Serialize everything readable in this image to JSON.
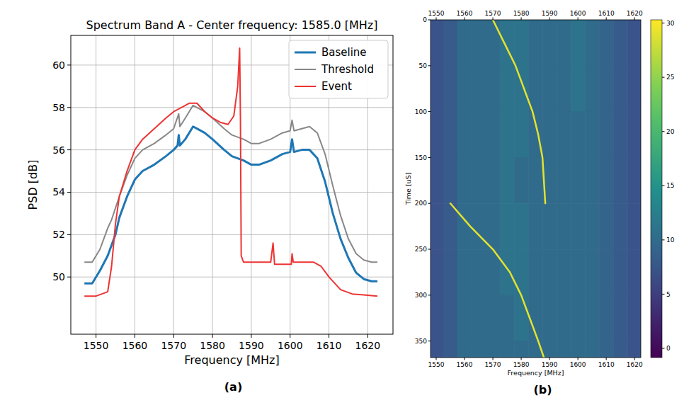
{
  "chart_data": [
    {
      "type": "line",
      "title": "Spectrum Band A - Center frequency: 1585.0 [MHz]",
      "x_label": "Frequency [MHz]",
      "y_label": "PSD [dB]",
      "panel_label": "(a)",
      "xlim": [
        1543.5,
        1626.5
      ],
      "xticks": [
        1550,
        1560,
        1570,
        1580,
        1590,
        1600,
        1610,
        1620
      ],
      "ylim": [
        47.3,
        61.4
      ],
      "yticks": [
        50,
        52,
        54,
        56,
        58,
        60
      ],
      "grid": true,
      "legend": "upper right",
      "series": [
        {
          "name": "Baseline",
          "color": "#1f77b4",
          "x": [
            1547,
            1549,
            1551,
            1553,
            1554,
            1555,
            1556,
            1558,
            1560,
            1562,
            1565,
            1568,
            1570,
            1571,
            1571.3,
            1571.6,
            1573,
            1575,
            1576,
            1578,
            1580,
            1583,
            1585,
            1588,
            1590,
            1592,
            1595,
            1598,
            1600,
            1600.5,
            1601,
            1603,
            1605,
            1607,
            1609,
            1611,
            1613,
            1615,
            1617,
            1619,
            1621,
            1622.5
          ],
          "values": [
            49.7,
            49.7,
            50.3,
            51.0,
            51.5,
            52.0,
            52.8,
            53.8,
            54.6,
            55.0,
            55.3,
            55.7,
            56.0,
            56.2,
            56.7,
            56.2,
            56.5,
            57.1,
            57.0,
            56.8,
            56.5,
            56.0,
            55.7,
            55.5,
            55.3,
            55.3,
            55.5,
            55.8,
            55.9,
            56.5,
            55.9,
            56.0,
            56.0,
            55.6,
            54.5,
            53.0,
            51.8,
            50.9,
            50.2,
            49.9,
            49.8,
            49.8
          ]
        },
        {
          "name": "Threshold",
          "color": "#888888",
          "x": [
            1547,
            1549,
            1551,
            1553,
            1554,
            1556,
            1558,
            1560,
            1562,
            1565,
            1568,
            1570,
            1571.3,
            1571.6,
            1573,
            1575,
            1576,
            1578,
            1580,
            1583,
            1585,
            1588,
            1590,
            1592,
            1595,
            1598,
            1600,
            1600.5,
            1601,
            1603,
            1605,
            1607,
            1609,
            1611,
            1613,
            1615,
            1617,
            1619,
            1621,
            1622.5
          ],
          "values": [
            50.7,
            50.7,
            51.3,
            52.3,
            52.7,
            53.8,
            54.8,
            55.6,
            56.0,
            56.3,
            56.7,
            57.0,
            57.7,
            57.1,
            57.5,
            58.1,
            58.0,
            57.8,
            57.5,
            57.0,
            56.7,
            56.5,
            56.3,
            56.3,
            56.5,
            56.8,
            56.9,
            57.4,
            56.9,
            57.0,
            57.1,
            56.8,
            55.8,
            54.3,
            52.9,
            51.8,
            51.1,
            50.8,
            50.7,
            50.7
          ]
        },
        {
          "name": "Event",
          "color": "#ee3333",
          "x": [
            1547,
            1550,
            1553,
            1554,
            1555,
            1556,
            1558,
            1560,
            1562,
            1565,
            1568,
            1570,
            1572,
            1574,
            1576,
            1578,
            1580,
            1582,
            1584,
            1585.5,
            1586.5,
            1587,
            1587.2,
            1587.4,
            1588,
            1590,
            1595,
            1595.6,
            1596,
            1598,
            1600.3,
            1600.5,
            1600.8,
            1603,
            1606,
            1608,
            1610,
            1613,
            1616,
            1622.5
          ],
          "values": [
            49.1,
            49.1,
            49.3,
            50.5,
            52.5,
            53.8,
            55.0,
            56.0,
            56.5,
            57.0,
            57.5,
            57.8,
            58.0,
            58.2,
            58.2,
            57.8,
            57.5,
            57.3,
            57.2,
            57.6,
            59.0,
            60.8,
            57.5,
            51.0,
            50.7,
            50.7,
            50.7,
            51.6,
            50.6,
            50.6,
            50.6,
            51.1,
            50.7,
            50.7,
            50.7,
            50.5,
            50.0,
            49.4,
            49.2,
            49.1
          ]
        }
      ]
    },
    {
      "type": "heatmap",
      "x_label": "Frequency [MHz]",
      "y_label": "Time [uS]",
      "panel_label": "(b)",
      "xlim": [
        1548,
        1622.2
      ],
      "xticks": [
        1550,
        1560,
        1570,
        1580,
        1590,
        1600,
        1610,
        1620
      ],
      "ylim": [
        0,
        368
      ],
      "yticks": [
        0,
        50,
        100,
        150,
        200,
        250,
        300,
        350
      ],
      "grid": false,
      "x_edges": [
        1547.5,
        1552.5,
        1557.5,
        1562.5,
        1567.5,
        1572.5,
        1577.5,
        1582.5,
        1587.5,
        1592.5,
        1597.5,
        1602.5,
        1607.5,
        1612.5,
        1617.5,
        1622.5
      ],
      "y_edges": [
        0,
        50,
        100,
        150,
        200,
        250,
        300,
        350,
        368
      ],
      "cells": [
        [
          7,
          8,
          10,
          10,
          10,
          11,
          11,
          10,
          10,
          10,
          11,
          10,
          9,
          8,
          7
        ],
        [
          7,
          8,
          10,
          10,
          10,
          11,
          11,
          10,
          10,
          10,
          11,
          10,
          9,
          8,
          7
        ],
        [
          7,
          8,
          10,
          10,
          10,
          11,
          11,
          10,
          10,
          10,
          10,
          10,
          9,
          8,
          7
        ],
        [
          7,
          8,
          10,
          10,
          10,
          11,
          10,
          10,
          10,
          10,
          10,
          10,
          9,
          8,
          7
        ],
        [
          7,
          8,
          10,
          10,
          10,
          11,
          11,
          10,
          10,
          10,
          10,
          10,
          9,
          8,
          7
        ],
        [
          7,
          8,
          10,
          10,
          10,
          11,
          11,
          10,
          10,
          10,
          10,
          10,
          9,
          8,
          7
        ],
        [
          7,
          8,
          10,
          10,
          10,
          10,
          11,
          10,
          10,
          10,
          10,
          10,
          9,
          8,
          7
        ],
        [
          7,
          8,
          10,
          10,
          10,
          10,
          10,
          10,
          10,
          10,
          10,
          10,
          9,
          8,
          7
        ]
      ],
      "series": [
        {
          "x": [
            1570,
            1574,
            1578,
            1581,
            1584,
            1586,
            1587.5,
            1588,
            1588.5
          ],
          "values": [
            0,
            25,
            50,
            75,
            100,
            125,
            150,
            175,
            200
          ],
          "level": 29
        },
        {
          "x": [
            1555,
            1562,
            1570,
            1576,
            1580,
            1583,
            1586,
            1588
          ],
          "values": [
            200,
            225,
            250,
            275,
            300,
            325,
            350,
            368
          ],
          "level": 29
        }
      ],
      "colorbar": {
        "range": [
          -0.85,
          30.3
        ],
        "ticks": [
          0,
          5,
          10,
          15,
          20,
          25,
          30
        ]
      }
    }
  ]
}
